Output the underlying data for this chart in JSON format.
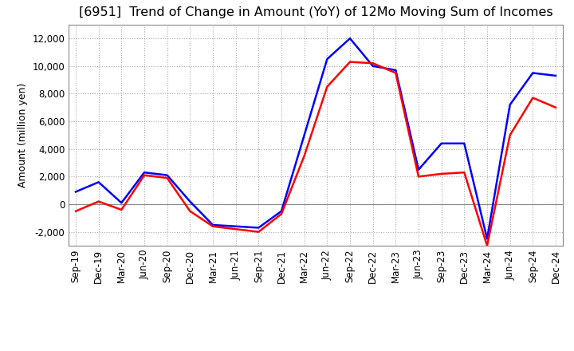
{
  "title": "[6951]  Trend of Change in Amount (YoY) of 12Mo Moving Sum of Incomes",
  "ylabel": "Amount (million yen)",
  "x_labels": [
    "Sep-19",
    "Dec-19",
    "Mar-20",
    "Jun-20",
    "Sep-20",
    "Dec-20",
    "Mar-21",
    "Jun-21",
    "Sep-21",
    "Dec-21",
    "Mar-22",
    "Jun-22",
    "Sep-22",
    "Dec-22",
    "Mar-23",
    "Jun-23",
    "Sep-23",
    "Dec-23",
    "Mar-24",
    "Jun-24",
    "Sep-24",
    "Dec-24"
  ],
  "ordinary_income": [
    900,
    1600,
    100,
    2300,
    2100,
    200,
    -1500,
    -1600,
    -1700,
    -500,
    5000,
    10500,
    12000,
    10000,
    9700,
    2500,
    4400,
    4400,
    -2500,
    7200,
    9500,
    9300
  ],
  "net_income": [
    -500,
    200,
    -400,
    2100,
    1900,
    -500,
    -1600,
    -1800,
    -2000,
    -700,
    3500,
    8500,
    10300,
    10200,
    9500,
    2000,
    2200,
    2300,
    -3000,
    5000,
    7700,
    7000
  ],
  "ordinary_color": "#0000ff",
  "net_color": "#ff0000",
  "ylim": [
    -3000,
    13000
  ],
  "yticks": [
    -2000,
    0,
    2000,
    4000,
    6000,
    8000,
    10000,
    12000
  ],
  "background_color": "#ffffff",
  "grid_color": "#aaaaaa",
  "title_fontsize": 11.5,
  "axis_fontsize": 9,
  "tick_fontsize": 8.5,
  "legend_fontsize": 9
}
